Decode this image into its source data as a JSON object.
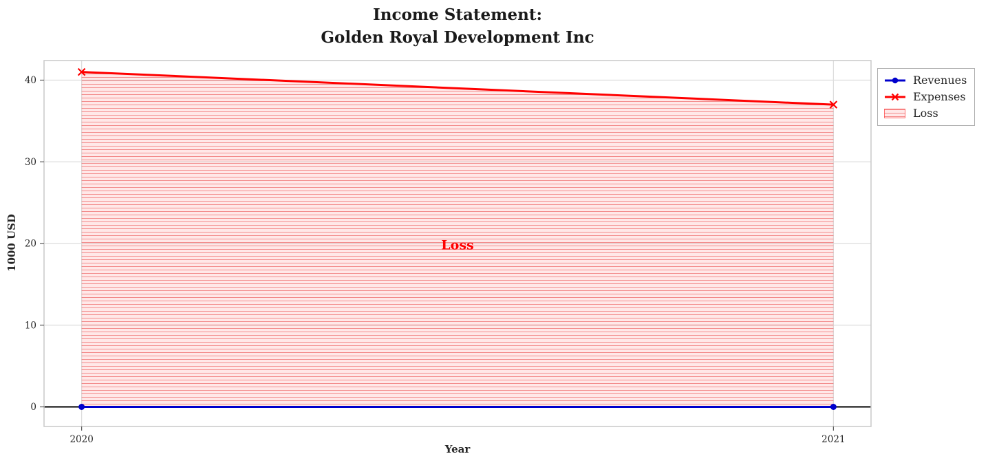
{
  "chart_data": {
    "type": "line",
    "title": "Income Statement:\nGolden Royal Development Inc",
    "title_lines": [
      "Income Statement:",
      "Golden Royal Development Inc"
    ],
    "xlabel": "Year",
    "ylabel": "1000 USD",
    "x": [
      2020,
      2021
    ],
    "xticks": [
      "2020",
      "2021"
    ],
    "yticks": [
      0,
      10,
      20,
      30,
      40
    ],
    "xlim": [
      2019.95,
      2021.05
    ],
    "ylim": [
      -2.4,
      42.4
    ],
    "grid": true,
    "legend_position": "upper right, outside axes",
    "series": [
      {
        "name": "Revenues",
        "values": [
          0,
          0
        ],
        "color": "#0000cc",
        "marker": "circle"
      },
      {
        "name": "Expenses",
        "values": [
          41,
          37
        ],
        "color": "#ff0000",
        "marker": "x"
      }
    ],
    "fill_between": {
      "label": "Loss",
      "upper_series": "Expenses",
      "lower_series": "Revenues",
      "hatch": "-",
      "color": "#ff0000"
    },
    "annotation": {
      "text": "Loss",
      "x": 2020.5,
      "y": 19.3,
      "color": "#ff0000"
    },
    "axhline": 0,
    "colors": {
      "grid": "#dcdcdc",
      "spine": "#c8c8c8",
      "text": "#262626",
      "axhline": "#000000"
    }
  }
}
